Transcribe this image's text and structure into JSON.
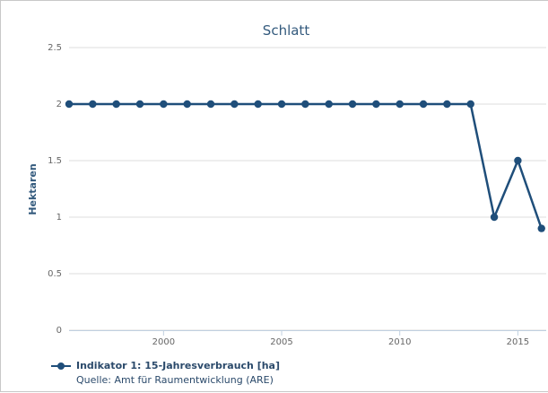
{
  "chart_data": {
    "type": "line",
    "title": "Schlatt",
    "xlabel": "",
    "ylabel": "Hektaren",
    "xlim": [
      1996,
      2016.2
    ],
    "ylim": [
      0,
      2.5
    ],
    "x_ticks": [
      2000,
      2005,
      2010,
      2015
    ],
    "y_ticks": [
      0,
      0.5,
      1,
      1.5,
      2,
      2.5
    ],
    "grid": "horizontal",
    "legend_position": "bottom-left",
    "series": [
      {
        "name": "Indikator 1: 15-Jahresverbrauch [ha]",
        "color": "#1f4e7a",
        "x": [
          1996,
          1997,
          1998,
          1999,
          2000,
          2001,
          2002,
          2003,
          2004,
          2005,
          2006,
          2007,
          2008,
          2009,
          2010,
          2011,
          2012,
          2013,
          2014,
          2015,
          2016
        ],
        "values": [
          2,
          2,
          2,
          2,
          2,
          2,
          2,
          2,
          2,
          2,
          2,
          2,
          2,
          2,
          2,
          2,
          2,
          2,
          1,
          1.5,
          0.9
        ]
      }
    ],
    "source": "Quelle: Amt für Raumentwicklung (ARE)"
  }
}
